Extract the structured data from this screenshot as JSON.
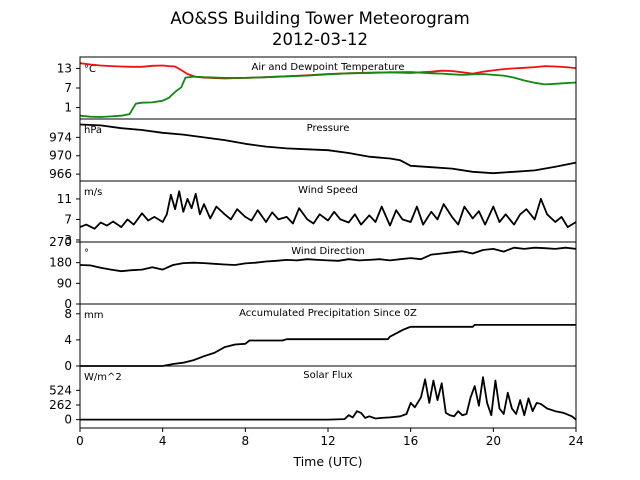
{
  "figure": {
    "title_line1": "AO&SS Building Tower Meteorogram",
    "title_line2": "2012-03-12",
    "xlabel": "Time (UTC)",
    "xticks": [
      "0",
      "4",
      "8",
      "12",
      "16",
      "20",
      "24"
    ]
  },
  "chart_data": [
    {
      "type": "line",
      "title": "Air and Dewpoint Temperature",
      "unit": "°C",
      "xlim": [
        0,
        24
      ],
      "ylim": [
        -2.5,
        16.5
      ],
      "yticks": [
        1,
        7,
        13
      ],
      "colors": {
        "air": "#ee1111",
        "dewpoint": "#118811"
      },
      "series": [
        {
          "key": "air",
          "x": [
            0,
            0.5,
            1,
            1.5,
            2,
            2.5,
            3,
            3.5,
            4,
            4.3,
            4.6,
            4.9,
            5.2,
            5.6,
            6,
            7,
            8,
            9,
            10,
            11,
            12,
            13,
            14,
            15,
            16,
            16.5,
            17,
            17.5,
            18,
            18.5,
            19,
            19.5,
            20,
            20.5,
            21,
            21.5,
            22,
            22.5,
            23,
            23.5,
            24
          ],
          "values": [
            14.6,
            14.2,
            13.9,
            13.7,
            13.6,
            13.5,
            13.5,
            13.8,
            13.9,
            13.7,
            13.6,
            12.5,
            11.3,
            10.4,
            10.2,
            9.9,
            10.1,
            10.3,
            10.6,
            10.9,
            11.3,
            11.5,
            11.7,
            11.8,
            11.6,
            11.8,
            12.0,
            12.3,
            12.2,
            11.8,
            11.4,
            12.0,
            12.4,
            12.8,
            13.0,
            13.2,
            13.4,
            13.7,
            13.6,
            13.4,
            13.1
          ]
        },
        {
          "key": "dewpoint",
          "x": [
            0,
            0.5,
            1,
            1.5,
            2,
            2.4,
            2.7,
            3,
            3.5,
            4,
            4.3,
            4.6,
            4.9,
            5.1,
            5.5,
            6,
            7,
            8,
            9,
            10,
            11,
            12,
            13,
            14,
            15,
            16,
            16.5,
            17,
            17.5,
            18,
            18.5,
            19,
            19.5,
            20,
            20.5,
            21,
            21.5,
            22,
            22.5,
            23,
            23.5,
            24
          ],
          "values": [
            -1.5,
            -1.8,
            -1.9,
            -1.7,
            -1.5,
            -1.0,
            2.2,
            2.5,
            2.6,
            3.1,
            4.0,
            5.8,
            7.2,
            10.2,
            10.5,
            10.3,
            10.1,
            10.1,
            10.3,
            10.6,
            10.8,
            11.2,
            11.5,
            11.6,
            11.8,
            11.9,
            11.7,
            11.5,
            11.4,
            11.2,
            11.0,
            11.2,
            11.3,
            11.0,
            10.8,
            10.2,
            9.3,
            8.6,
            8.1,
            8.3,
            8.5,
            8.7
          ]
        }
      ]
    },
    {
      "type": "line",
      "title": "Pressure",
      "unit": "hPa",
      "xlim": [
        0,
        24
      ],
      "ylim": [
        964.5,
        978
      ],
      "yticks": [
        966,
        970,
        974
      ],
      "colors": {
        "line": "#000000"
      },
      "series": [
        {
          "key": "pressure",
          "x": [
            0,
            1,
            2,
            3,
            4,
            5,
            6,
            7,
            8,
            9,
            10,
            11,
            12,
            13,
            14,
            15,
            15.5,
            16,
            17,
            18,
            19,
            20,
            21,
            22,
            23,
            24
          ],
          "values": [
            976.8,
            976.6,
            976.0,
            975.6,
            975.0,
            974.6,
            974.0,
            973.4,
            972.6,
            972.0,
            971.6,
            971.4,
            971.2,
            970.6,
            969.8,
            969.4,
            969.0,
            967.8,
            967.5,
            967.2,
            966.5,
            966.2,
            966.5,
            966.8,
            967.6,
            968.5
          ]
        }
      ]
    },
    {
      "type": "line",
      "title": "Wind Speed",
      "unit": "m/s",
      "xlim": [
        0,
        24
      ],
      "ylim": [
        2.6,
        14.5
      ],
      "yticks": [
        3,
        7,
        11
      ],
      "colors": {
        "line": "#000000"
      },
      "series": [
        {
          "key": "wind_speed",
          "x": [
            0,
            0.3,
            0.7,
            1,
            1.3,
            1.6,
            2,
            2.3,
            2.6,
            3,
            3.3,
            3.6,
            4,
            4.2,
            4.4,
            4.6,
            4.8,
            5,
            5.2,
            5.4,
            5.6,
            5.8,
            6,
            6.3,
            6.6,
            7,
            7.3,
            7.6,
            8,
            8.3,
            8.6,
            9,
            9.3,
            9.6,
            10,
            10.3,
            10.6,
            11,
            11.3,
            11.6,
            12,
            12.3,
            12.6,
            13,
            13.3,
            13.6,
            14,
            14.3,
            14.6,
            15,
            15.3,
            15.6,
            16,
            16.3,
            16.6,
            17,
            17.3,
            17.6,
            18,
            18.3,
            18.6,
            19,
            19.3,
            19.6,
            20,
            20.3,
            20.6,
            21,
            21.3,
            21.6,
            22,
            22.3,
            22.6,
            23,
            23.3,
            23.6,
            24
          ],
          "values": [
            5.5,
            6.0,
            5.2,
            6.4,
            5.8,
            6.6,
            5.5,
            7.0,
            6.0,
            8.2,
            6.8,
            7.5,
            6.5,
            8.0,
            11.8,
            9.0,
            12.5,
            8.5,
            11.0,
            9.2,
            12.0,
            8.0,
            10.0,
            7.2,
            9.5,
            8.0,
            7.0,
            9.0,
            7.5,
            6.8,
            8.8,
            6.5,
            8.4,
            7.0,
            7.5,
            6.2,
            9.2,
            7.0,
            6.2,
            8.0,
            6.8,
            8.5,
            7.0,
            6.4,
            8.0,
            6.0,
            7.8,
            6.5,
            9.5,
            5.8,
            8.8,
            7.0,
            6.5,
            9.5,
            6.0,
            8.5,
            7.0,
            10.0,
            7.5,
            6.0,
            9.5,
            7.2,
            8.6,
            6.0,
            9.5,
            6.5,
            8.0,
            6.0,
            8.0,
            9.0,
            7.0,
            11.0,
            8.0,
            6.5,
            7.5,
            5.5,
            6.5
          ]
        }
      ]
    },
    {
      "type": "line",
      "title": "Wind Direction",
      "unit": "°",
      "xlim": [
        0,
        24
      ],
      "ylim": [
        0,
        270
      ],
      "yticks": [
        0,
        90,
        180,
        270
      ],
      "colors": {
        "line": "#000000"
      },
      "series": [
        {
          "key": "wind_dir",
          "x": [
            0,
            0.5,
            1,
            1.5,
            2,
            2.5,
            3,
            3.5,
            4,
            4.5,
            5,
            5.5,
            6,
            6.5,
            7,
            7.5,
            8,
            8.5,
            9,
            9.5,
            10,
            10.5,
            11,
            11.5,
            12,
            12.5,
            13,
            13.5,
            14,
            14.5,
            15,
            15.5,
            16,
            16.5,
            17,
            17.5,
            18,
            18.5,
            19,
            19.5,
            20,
            20.5,
            21,
            21.5,
            22,
            22.5,
            23,
            23.5,
            24
          ],
          "values": [
            170,
            168,
            158,
            150,
            143,
            147,
            150,
            160,
            150,
            170,
            178,
            180,
            178,
            175,
            172,
            170,
            177,
            180,
            185,
            188,
            192,
            190,
            195,
            192,
            190,
            188,
            195,
            190,
            192,
            195,
            190,
            195,
            200,
            195,
            215,
            220,
            225,
            230,
            220,
            235,
            240,
            228,
            245,
            240,
            245,
            243,
            240,
            245,
            240
          ]
        }
      ]
    },
    {
      "type": "line",
      "title": "Accumulated Precipitation Since 0Z",
      "unit": "mm",
      "xlim": [
        0,
        24
      ],
      "ylim": [
        0,
        9.5
      ],
      "yticks": [
        0,
        4,
        8
      ],
      "colors": {
        "line": "#000000"
      },
      "series": [
        {
          "key": "precip",
          "x": [
            0,
            3,
            3.5,
            4,
            4.5,
            5,
            5.5,
            6,
            6.5,
            7,
            7.5,
            8,
            8.2,
            9,
            9.8,
            10,
            12,
            14,
            14.9,
            15,
            15.3,
            15.6,
            15.9,
            16,
            18,
            19,
            19.1,
            22,
            24
          ],
          "values": [
            0,
            0,
            0,
            0,
            0.3,
            0.5,
            0.9,
            1.5,
            2.0,
            2.9,
            3.3,
            3.4,
            3.9,
            3.9,
            3.9,
            4.1,
            4.1,
            4.1,
            4.1,
            4.5,
            5.0,
            5.5,
            5.9,
            6.0,
            6.0,
            6.0,
            6.3,
            6.3,
            6.3
          ]
        }
      ]
    },
    {
      "type": "line",
      "title": "Solar Flux",
      "unit": "W/m^2",
      "xlim": [
        0,
        24
      ],
      "ylim": [
        -150,
        960
      ],
      "yticks": [
        0,
        262,
        524
      ],
      "colors": {
        "line": "#000000"
      },
      "series": [
        {
          "key": "solar",
          "x": [
            0,
            12,
            12.8,
            13,
            13.2,
            13.4,
            13.6,
            13.8,
            14.0,
            14.3,
            14.6,
            15.0,
            15.5,
            15.8,
            16.0,
            16.2,
            16.5,
            16.7,
            16.9,
            17.1,
            17.3,
            17.5,
            17.7,
            17.9,
            18.1,
            18.3,
            18.5,
            18.7,
            18.9,
            19.1,
            19.3,
            19.5,
            19.7,
            19.9,
            20.1,
            20.3,
            20.5,
            20.7,
            20.9,
            21.1,
            21.3,
            21.5,
            21.7,
            21.9,
            22.1,
            22.3,
            22.6,
            23.0,
            23.4,
            23.8,
            24
          ],
          "values": [
            0,
            0,
            10,
            80,
            40,
            150,
            120,
            30,
            60,
            20,
            30,
            40,
            60,
            100,
            300,
            220,
            400,
            720,
            300,
            700,
            350,
            650,
            120,
            80,
            60,
            150,
            80,
            100,
            400,
            600,
            250,
            760,
            300,
            80,
            700,
            200,
            100,
            480,
            200,
            100,
            350,
            80,
            380,
            150,
            300,
            280,
            200,
            150,
            120,
            60,
            0
          ]
        }
      ]
    }
  ]
}
